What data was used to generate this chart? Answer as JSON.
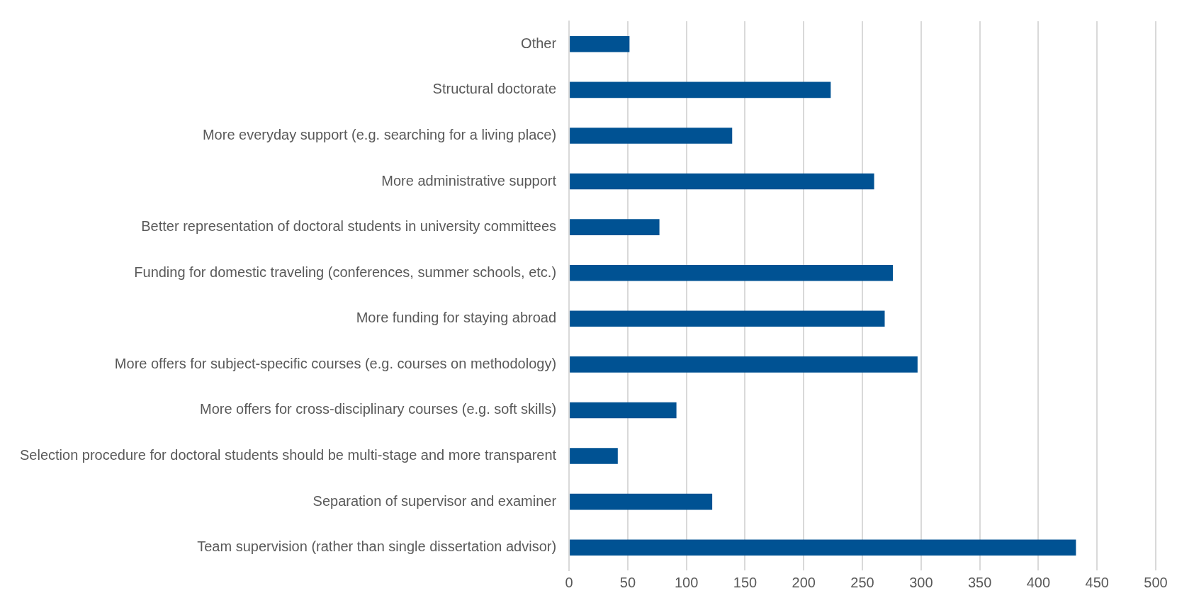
{
  "chart_data": {
    "type": "bar",
    "orientation": "horizontal",
    "categories": [
      "Other",
      "Structural doctorate",
      "More everyday support (e.g. searching for a living place)",
      "More administrative support",
      "Better representation of doctoral students in university committees",
      "Funding for domestic traveling (conferences, summer schools, etc.)",
      "More funding for staying abroad",
      "More offers for subject-specific courses (e.g. courses on methodology)",
      "More offers for cross-disciplinary courses (e.g. soft skills)",
      "Selection procedure for doctoral students should be multi-stage and more transparent",
      "Separation of supervisor and examiner",
      "Team supervision (rather than single dissertation advisor)"
    ],
    "values": [
      51.5,
      223,
      139,
      260,
      77,
      276,
      269,
      297,
      91.5,
      41.5,
      122,
      432
    ],
    "color": "#005293",
    "xlim": [
      0,
      500
    ],
    "xticks": [
      0,
      50,
      100,
      150,
      200,
      250,
      300,
      350,
      400,
      450,
      500
    ],
    "grid": "x",
    "legend": false
  }
}
